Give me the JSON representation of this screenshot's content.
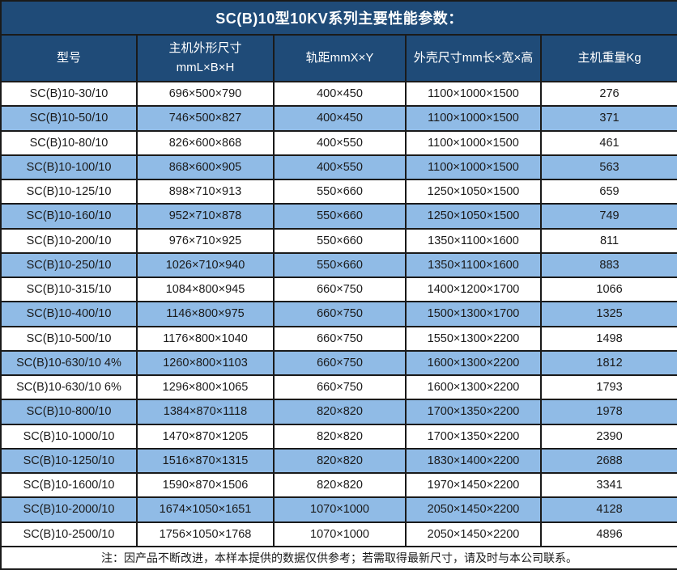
{
  "title": "SC(B)10型10KV系列主要性能参数：",
  "colors": {
    "header_background": "#1f4b78",
    "alt_row_background": "#90bbe6",
    "grid_border": "#1a1a1a",
    "header_text": "#ffffff",
    "body_text": "#1a1a1a"
  },
  "table": {
    "column_keys": [
      "model",
      "main-dimensions",
      "rail-gauge",
      "shell-dimensions",
      "weight"
    ],
    "headers": [
      "型号",
      "主机外形尺寸\nmmL×B×H",
      "轨距mmX×Y",
      "外壳尺寸mm长×宽×高",
      "主机重量Kg"
    ],
    "rows": [
      [
        "SC(B)10-30/10",
        "696×500×790",
        "400×450",
        "1100×1000×1500",
        "276"
      ],
      [
        "SC(B)10-50/10",
        "746×500×827",
        "400×450",
        "1100×1000×1500",
        "371"
      ],
      [
        "SC(B)10-80/10",
        "826×600×868",
        "400×550",
        "1100×1000×1500",
        "461"
      ],
      [
        "SC(B)10-100/10",
        "868×600×905",
        "400×550",
        "1100×1000×1500",
        "563"
      ],
      [
        "SC(B)10-125/10",
        "898×710×913",
        "550×660",
        "1250×1050×1500",
        "659"
      ],
      [
        "SC(B)10-160/10",
        "952×710×878",
        "550×660",
        "1250×1050×1500",
        "749"
      ],
      [
        "SC(B)10-200/10",
        "976×710×925",
        "550×660",
        "1350×1100×1600",
        "811"
      ],
      [
        "SC(B)10-250/10",
        "1026×710×940",
        "550×660",
        "1350×1100×1600",
        "883"
      ],
      [
        "SC(B)10-315/10",
        "1084×800×945",
        "660×750",
        "1400×1200×1700",
        "1066"
      ],
      [
        "SC(B)10-400/10",
        "1146×800×975",
        "660×750",
        "1500×1300×1700",
        "1325"
      ],
      [
        "SC(B)10-500/10",
        "1176×800×1040",
        "660×750",
        "1550×1300×2200",
        "1498"
      ],
      [
        "SC(B)10-630/10 4%",
        "1260×800×1103",
        "660×750",
        "1600×1300×2200",
        "1812"
      ],
      [
        "SC(B)10-630/10 6%",
        "1296×800×1065",
        "660×750",
        "1600×1300×2200",
        "1793"
      ],
      [
        "SC(B)10-800/10",
        "1384×870×1118",
        "820×820",
        "1700×1350×2200",
        "1978"
      ],
      [
        "SC(B)10-1000/10",
        "1470×870×1205",
        "820×820",
        "1700×1350×2200",
        "2390"
      ],
      [
        "SC(B)10-1250/10",
        "1516×870×1315",
        "820×820",
        "1830×1400×2200",
        "2688"
      ],
      [
        "SC(B)10-1600/10",
        "1590×870×1506",
        "820×820",
        "1970×1450×2200",
        "3341"
      ],
      [
        "SC(B)10-2000/10",
        "1674×1050×1651",
        "1070×1000",
        "2050×1450×2200",
        "4128"
      ],
      [
        "SC(B)10-2500/10",
        "1756×1050×1768",
        "1070×1000",
        "2050×1450×2200",
        "4896"
      ]
    ]
  },
  "note": "注：因产品不断改进，本样本提供的数据仅供参考；若需取得最新尺寸，请及时与本公司联系。"
}
